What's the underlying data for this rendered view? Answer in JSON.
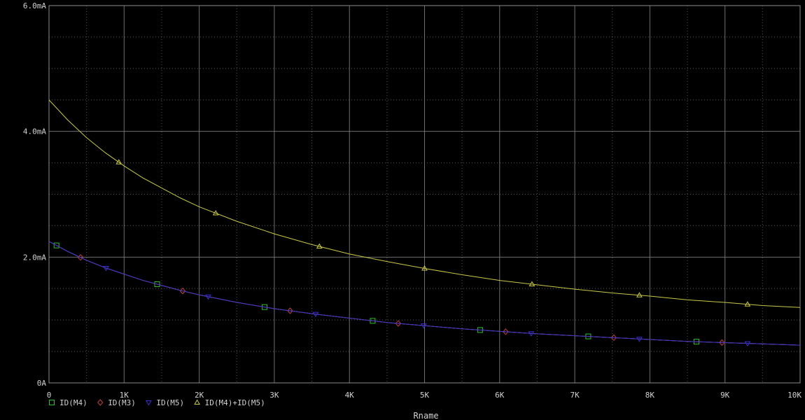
{
  "chart_data": {
    "type": "line",
    "title": "",
    "xlabel": "Rname",
    "ylabel": "",
    "xlim": [
      0,
      10000
    ],
    "ylim": [
      0,
      0.006
    ],
    "background": "#000000",
    "grid": true,
    "grid_color": "#7a7a7a",
    "legend_position": "bottom-left",
    "x_ticks": [
      {
        "value": 0,
        "label": "0"
      },
      {
        "value": 1000,
        "label": "1K"
      },
      {
        "value": 2000,
        "label": "2K"
      },
      {
        "value": 3000,
        "label": "3K"
      },
      {
        "value": 4000,
        "label": "4K"
      },
      {
        "value": 5000,
        "label": "5K"
      },
      {
        "value": 6000,
        "label": "6K"
      },
      {
        "value": 7000,
        "label": "7K"
      },
      {
        "value": 8000,
        "label": "8K"
      },
      {
        "value": 9000,
        "label": "9K"
      },
      {
        "value": 10000,
        "label": "10K"
      }
    ],
    "y_ticks": [
      {
        "value": 0,
        "label": "0A"
      },
      {
        "value": 0.002,
        "label": "2.0mA"
      },
      {
        "value": 0.004,
        "label": "4.0mA"
      },
      {
        "value": 0.006,
        "label": "6.0mA"
      }
    ],
    "x": [
      0,
      250,
      500,
      750,
      1000,
      1250,
      1500,
      1750,
      2000,
      2500,
      3000,
      3500,
      4000,
      4500,
      5000,
      5500,
      6000,
      6500,
      7000,
      7500,
      8000,
      8500,
      9000,
      9500,
      10000
    ],
    "series": [
      {
        "name": "ID(M4)",
        "color": "#2fbf2f",
        "marker": "square",
        "values": [
          0.00225,
          0.00209,
          0.00195,
          0.00183,
          0.00173,
          0.00163,
          0.00155,
          0.00147,
          0.0014,
          0.00128,
          0.00118,
          0.0011,
          0.00103,
          0.00096,
          0.00091,
          0.00086,
          0.00082,
          0.00078,
          0.00075,
          0.00072,
          0.00069,
          0.00066,
          0.00064,
          0.00062,
          0.0006
        ],
        "marker_x": [
          100,
          1440,
          2870,
          4310,
          5740,
          7180,
          8620
        ]
      },
      {
        "name": "ID(M3)",
        "color": "#c04040",
        "marker": "diamond",
        "values": [
          0.00225,
          0.00209,
          0.00195,
          0.00183,
          0.00173,
          0.00163,
          0.00155,
          0.00147,
          0.0014,
          0.00128,
          0.00118,
          0.0011,
          0.00103,
          0.00096,
          0.00091,
          0.00086,
          0.00082,
          0.00078,
          0.00075,
          0.00072,
          0.00069,
          0.00066,
          0.00064,
          0.00062,
          0.0006
        ],
        "marker_x": [
          420,
          1780,
          3210,
          4650,
          6080,
          7520,
          8960
        ]
      },
      {
        "name": "ID(M5)",
        "color": "#3a2fd0",
        "marker": "triangle-down",
        "values": [
          0.00225,
          0.00209,
          0.00195,
          0.00183,
          0.00173,
          0.00163,
          0.00155,
          0.00147,
          0.0014,
          0.00128,
          0.00118,
          0.0011,
          0.00103,
          0.00096,
          0.00091,
          0.00086,
          0.00082,
          0.00078,
          0.00075,
          0.00072,
          0.00069,
          0.00066,
          0.00064,
          0.00062,
          0.0006
        ],
        "marker_x": [
          760,
          2120,
          3550,
          4990,
          6420,
          7860,
          9300
        ]
      },
      {
        "name": "ID(M4)+ID(M5)",
        "color": "#c8c84a",
        "marker": "triangle-up",
        "values": [
          0.0045,
          0.00418,
          0.0039,
          0.00366,
          0.00345,
          0.00326,
          0.0031,
          0.00294,
          0.0028,
          0.00257,
          0.00237,
          0.0022,
          0.00205,
          0.00193,
          0.00182,
          0.00172,
          0.00163,
          0.00156,
          0.00149,
          0.00143,
          0.00138,
          0.00132,
          0.00128,
          0.00123,
          0.0012
        ],
        "marker_x": [
          930,
          2220,
          3600,
          5000,
          6430,
          7860,
          9300
        ]
      }
    ]
  }
}
